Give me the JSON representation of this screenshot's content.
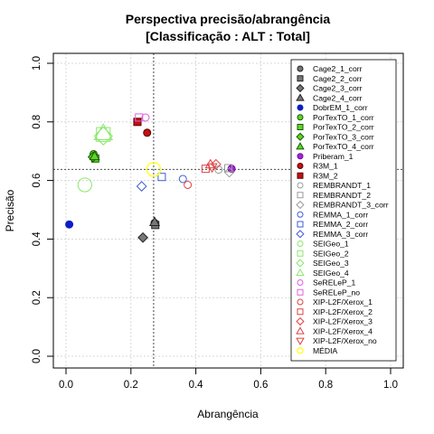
{
  "chart_data": {
    "type": "scatter",
    "title": "Perspectiva precisão/abrangência",
    "subtitle": "[Classificação : ALT : Total]",
    "xlabel": "Abrangência",
    "ylabel": "Precisão",
    "xlim": [
      0.0,
      1.0
    ],
    "ylim": [
      0.0,
      1.0
    ],
    "x_ticks": [
      "0.0",
      "0.2",
      "0.4",
      "0.6",
      "0.8",
      "1.0"
    ],
    "y_ticks": [
      "0.0",
      "0.2",
      "0.4",
      "0.6",
      "0.8",
      "1.0"
    ],
    "grid": true,
    "legend_position": "right",
    "reference_lines": {
      "x": 0.27,
      "y": 0.638
    },
    "series": [
      {
        "name": "Cage2_1_corr",
        "shape": "circle",
        "color": "#222222",
        "fill": "#777777",
        "x": 0.273,
        "y": 0.455,
        "size": 1
      },
      {
        "name": "Cage2_2_corr",
        "shape": "square",
        "color": "#222222",
        "fill": "#777777",
        "x": 0.275,
        "y": 0.448,
        "size": 1
      },
      {
        "name": "Cage2_3_corr",
        "shape": "diamond",
        "color": "#222222",
        "fill": "#777777",
        "x": 0.237,
        "y": 0.405,
        "size": 1
      },
      {
        "name": "Cage2_4_corr",
        "shape": "triangle",
        "color": "#222222",
        "fill": "#777777",
        "x": 0.273,
        "y": 0.458,
        "size": 1
      },
      {
        "name": "DobrEM_1_corr",
        "shape": "circle",
        "color": "#0a1dc8",
        "fill": "#0a1dc8",
        "x": 0.01,
        "y": 0.45,
        "size": 1
      },
      {
        "name": "PorTexTO_1_corr",
        "shape": "circle",
        "color": "#1a5a00",
        "fill": "#5cd62a",
        "x": 0.085,
        "y": 0.69,
        "size": 1
      },
      {
        "name": "PorTexTO_2_corr",
        "shape": "square",
        "color": "#1a5a00",
        "fill": "#5cd62a",
        "x": 0.09,
        "y": 0.675,
        "size": 1
      },
      {
        "name": "PorTexTO_3_corr",
        "shape": "diamond",
        "color": "#1a5a00",
        "fill": "#5cd62a",
        "x": 0.083,
        "y": 0.68,
        "size": 1
      },
      {
        "name": "PorTexTO_4_corr",
        "shape": "triangle",
        "color": "#1a5a00",
        "fill": "#5cd62a",
        "x": 0.088,
        "y": 0.683,
        "size": 1
      },
      {
        "name": "Priberam_1",
        "shape": "circle",
        "color": "#7a00a8",
        "fill": "#9d2ad0",
        "x": 0.51,
        "y": 0.64,
        "size": 1
      },
      {
        "name": "R3M_1",
        "shape": "circle",
        "color": "#5a0000",
        "fill": "#c41010",
        "x": 0.25,
        "y": 0.763,
        "size": 1
      },
      {
        "name": "R3M_2",
        "shape": "square",
        "color": "#5a0000",
        "fill": "#c41010",
        "x": 0.22,
        "y": 0.8,
        "size": 1
      },
      {
        "name": "REMBRANDT_1",
        "shape": "circle",
        "color": "#9a9a9a",
        "fill": "none",
        "x": 0.47,
        "y": 0.637,
        "size": 1
      },
      {
        "name": "REMBRANDT_2",
        "shape": "square",
        "color": "#9a9a9a",
        "fill": "none",
        "x": 0.5,
        "y": 0.642,
        "size": 1
      },
      {
        "name": "REMBRANDT_3_corr",
        "shape": "diamond",
        "color": "#9a9a9a",
        "fill": "none",
        "x": 0.503,
        "y": 0.628,
        "size": 1
      },
      {
        "name": "REMMA_1_corr",
        "shape": "circle",
        "color": "#3d5cd8",
        "fill": "none",
        "x": 0.36,
        "y": 0.605,
        "size": 1
      },
      {
        "name": "REMMA_2_corr",
        "shape": "square",
        "color": "#3d5cd8",
        "fill": "none",
        "x": 0.295,
        "y": 0.612,
        "size": 1
      },
      {
        "name": "REMMA_3_corr",
        "shape": "diamond",
        "color": "#3d5cd8",
        "fill": "none",
        "x": 0.233,
        "y": 0.58,
        "size": 1
      },
      {
        "name": "SEIGeo_1",
        "shape": "circle",
        "color": "#88e86a",
        "fill": "none",
        "x": 0.058,
        "y": 0.585,
        "size": 1.9
      },
      {
        "name": "SEIGeo_2",
        "shape": "square",
        "color": "#88e86a",
        "fill": "none",
        "x": 0.115,
        "y": 0.757,
        "size": 1.9
      },
      {
        "name": "SEIGeo_3",
        "shape": "diamond",
        "color": "#88e86a",
        "fill": "none",
        "x": 0.115,
        "y": 0.752,
        "size": 1.9
      },
      {
        "name": "SEIGeo_4",
        "shape": "triangle",
        "color": "#88e86a",
        "fill": "none",
        "x": 0.115,
        "y": 0.762,
        "size": 1.9
      },
      {
        "name": "SeRELeP_1",
        "shape": "circle",
        "color": "#e060e0",
        "fill": "none",
        "x": 0.245,
        "y": 0.815,
        "size": 1
      },
      {
        "name": "SeRELeP_no",
        "shape": "square",
        "color": "#e060e0",
        "fill": "none",
        "x": 0.225,
        "y": 0.815,
        "size": 1
      },
      {
        "name": "XIP-L2F/Xerox_1",
        "shape": "circle",
        "color": "#e04040",
        "fill": "none",
        "x": 0.375,
        "y": 0.585,
        "size": 1
      },
      {
        "name": "XIP-L2F/Xerox_2",
        "shape": "square",
        "color": "#e04040",
        "fill": "none",
        "x": 0.43,
        "y": 0.64,
        "size": 1
      },
      {
        "name": "XIP-L2F/Xerox_3",
        "shape": "diamond",
        "color": "#e04040",
        "fill": "none",
        "x": 0.462,
        "y": 0.655,
        "size": 1
      },
      {
        "name": "XIP-L2F/Xerox_4",
        "shape": "triangle",
        "color": "#e04040",
        "fill": "none",
        "x": 0.445,
        "y": 0.655,
        "size": 1
      },
      {
        "name": "XIP-L2F/Xerox_no",
        "shape": "triangle-down",
        "color": "#e04040",
        "fill": "none",
        "x": 0.45,
        "y": 0.645,
        "size": 1
      },
      {
        "name": "MÉDIA",
        "shape": "circle",
        "color": "#ffff33",
        "fill": "none",
        "x": 0.27,
        "y": 0.638,
        "size": 1.9
      }
    ]
  }
}
